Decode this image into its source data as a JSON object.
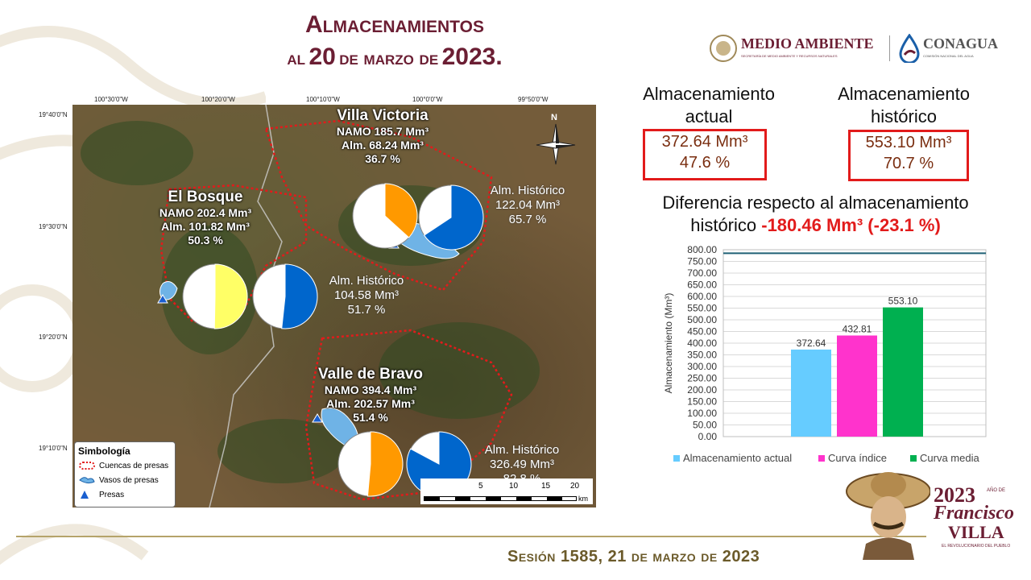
{
  "header": {
    "title_line1": "Almacenamientos",
    "title_line2_prefix": "al",
    "title_line2_day": "20",
    "title_line2_mid": "de marzo de",
    "title_line2_year": "2023."
  },
  "logos": {
    "medio_ambiente": "MEDIO AMBIENTE",
    "medio_ambiente_sub": "SECRETARÍA DE MEDIO AMBIENTE Y RECURSOS NATURALES",
    "conagua": "CONAGUA",
    "conagua_sub": "COMISIÓN NACIONAL DEL AGUA"
  },
  "kpis": {
    "actual_label_1": "Almacenamiento",
    "actual_label_2": "actual",
    "actual_value": "372.64 Mm³",
    "actual_pct": "47.6 %",
    "hist_label_1": "Almacenamiento",
    "hist_label_2": "histórico",
    "hist_value": "553.10 Mm³",
    "hist_pct": "70.7 %"
  },
  "difference": {
    "line1": "Diferencia respecto al almacenamiento",
    "line2_prefix": "histórico",
    "line2_value": "-180.46 Mm³ (-23.1 %)"
  },
  "map": {
    "coords_top": [
      "100°30'0\"W",
      "100°20'0\"W",
      "100°10'0\"W",
      "100°0'0\"W",
      "99°50'0\"W"
    ],
    "coords_left": [
      "19°40'0\"N",
      "19°30'0\"N",
      "19°20'0\"N",
      "19°10'0\"N"
    ],
    "north": "N",
    "reservoirs": [
      {
        "name": "Villa Victoria",
        "namo": "NAMO 185.7 Mm³",
        "alm": "Alm. 68.24 Mm³",
        "pct": "36.7 %",
        "current_fraction": 0.367,
        "hist_title": "Alm. Histórico",
        "hist_value": "122.04 Mm³",
        "hist_pct": "65.7 %",
        "hist_fraction": 0.657
      },
      {
        "name": "El Bosque",
        "namo": "NAMO 202.4 Mm³",
        "alm": "Alm. 101.82 Mm³",
        "pct": "50.3 %",
        "current_fraction": 0.503,
        "hist_title": "Alm. Histórico",
        "hist_value": "104.58 Mm³",
        "hist_pct": "51.7 %",
        "hist_fraction": 0.517
      },
      {
        "name": "Valle de Bravo",
        "namo": "NAMO 394.4 Mm³",
        "alm": "Alm. 202.57 Mm³",
        "pct": "51.4 %",
        "current_fraction": 0.514,
        "hist_title": "Alm. Histórico",
        "hist_value": "326.49 Mm³",
        "hist_pct": "82.8 %",
        "hist_fraction": 0.828
      }
    ],
    "legend": {
      "title": "Simbología",
      "items": [
        "Cuencas de presas",
        "Vasos de presas",
        "Presas"
      ]
    },
    "scale": {
      "ticks": [
        "0",
        "5",
        "10",
        "15",
        "20"
      ],
      "unit": "km"
    },
    "colors": {
      "current_el_bosque": "#ffff66",
      "current_other": "#ff9900",
      "historic": "#0066cc",
      "empty": "#ffffff",
      "basin_outline": "#e21b1b"
    }
  },
  "chart_data": {
    "type": "bar",
    "categories": [
      "Almacenamiento actual",
      "Curva índice",
      "Curva media"
    ],
    "values": [
      372.64,
      432.81,
      553.1
    ],
    "value_labels": [
      "372.64",
      "432.81",
      "553.10"
    ],
    "colors": [
      "#66ccff",
      "#ff33cc",
      "#00b050"
    ],
    "ylabel": "Almacenamiento (Mm³)",
    "ylim": [
      0,
      800
    ],
    "ytick_step": 50,
    "reference_line": 785,
    "reference_color": "#1f6075",
    "grid": true,
    "legend": "bottom",
    "legend_entries": [
      "Almacenamiento actual",
      "Curva índice",
      "Curva media"
    ]
  },
  "footer": {
    "session": "Sesión 1585, 21 de marzo de 2023"
  },
  "badge": {
    "year": "2023",
    "anio_de": "AÑO DE",
    "name1": "Francisco",
    "name2": "VILLA",
    "motto": "EL REVOLUCIONARIO DEL PUEBLO"
  }
}
